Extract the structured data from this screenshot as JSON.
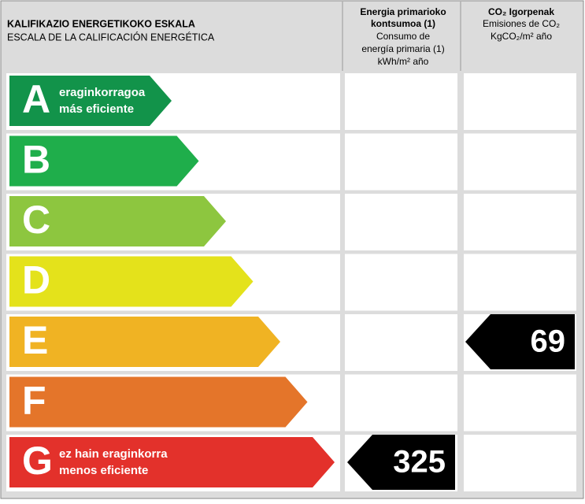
{
  "header": {
    "title": "KALIFIKAZIO ENERGETIKOKO ESKALA",
    "subtitle": "ESCALA DE LA CALIFICACIÓN ENERGÉTICA",
    "consumption": {
      "title": [
        "Energia primarioko",
        "kontsumoa (1)"
      ],
      "subtitle": [
        "Consumo de",
        "energía primaria (1)"
      ],
      "unit": "kWh/m² año"
    },
    "emissions": {
      "title": "CO₂ Igorpenak",
      "subtitle": "Emisiones de CO₂",
      "unit": "KgCO₂/m² año"
    }
  },
  "grades": [
    {
      "letter": "A",
      "color": "#12934a",
      "note": [
        "eraginkorragoa",
        "más eficiente"
      ]
    },
    {
      "letter": "B",
      "color": "#1fae4b"
    },
    {
      "letter": "C",
      "color": "#8dc63f"
    },
    {
      "letter": "D",
      "color": "#e4e21b"
    },
    {
      "letter": "E",
      "color": "#f0b323",
      "emissions": 69
    },
    {
      "letter": "F",
      "color": "#e4752a"
    },
    {
      "letter": "G",
      "color": "#e3312b",
      "note": [
        "ez hain eraginkorra",
        "menos eficiente"
      ],
      "consumption": 325
    }
  ]
}
